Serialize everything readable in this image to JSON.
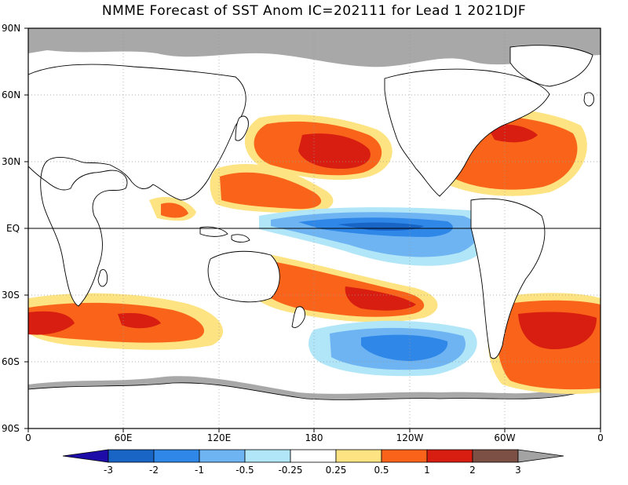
{
  "title": "NMME Forecast of SST Anom IC=202111 for Lead 1 2021DJF",
  "yticks": [
    "90N",
    "60N",
    "30N",
    "EQ",
    "30S",
    "60S",
    "90S"
  ],
  "xticks": [
    "0",
    "60E",
    "120E",
    "180",
    "120W",
    "60W",
    "0"
  ],
  "colorbar": {
    "labels": [
      "-3",
      "-2",
      "-1",
      "-0.5",
      "-0.25",
      "0.25",
      "0.5",
      "1",
      "2",
      "3"
    ],
    "colors": {
      "lt3": "#1d0ca8",
      "m3_m2": "#1965c6",
      "m2_m1": "#2f87e8",
      "m1_m05": "#6fb4f2",
      "m05_m025": "#b0e6f8",
      "neutral": "#ffffff",
      "p025_p05": "#fde381",
      "p05_p1": "#f9641a",
      "p1_p2": "#d81e10",
      "p2_p3": "#7c5045",
      "gt3": "#a3a3a3"
    }
  },
  "map": {
    "land_color": "#ffffff",
    "ice_color": "#a8a8a8",
    "coastline_color": "#000000"
  }
}
